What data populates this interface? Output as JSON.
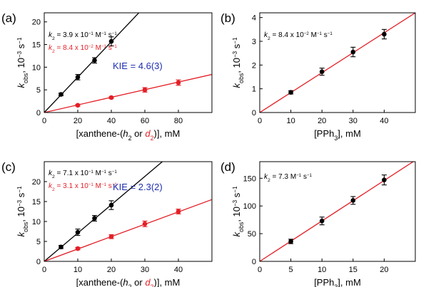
{
  "colors": {
    "black": "#000000",
    "red": "#e41f26",
    "blue": "#1f2fb0"
  },
  "chart_data": [
    {
      "type": "scatter",
      "panel": "(a)",
      "xlim": [
        0,
        100
      ],
      "ylim": [
        0,
        22
      ],
      "xticks": [
        0,
        20,
        40,
        60,
        80
      ],
      "yticks": [
        0,
        5,
        10,
        15,
        20
      ],
      "xlabel_parts": [
        "[xanthene-(",
        "h",
        "2",
        " or ",
        "d",
        "2",
        ")], mM"
      ],
      "ylabel_parts": [
        "k",
        "obs",
        ", 10",
        "−3",
        " s",
        "−1"
      ],
      "grid": false,
      "series": [
        {
          "color": "#000000",
          "x": [
            10,
            20,
            30,
            40
          ],
          "y": [
            4.0,
            7.8,
            11.5,
            15.7
          ],
          "err": [
            0.3,
            0.6,
            0.6,
            1.0
          ],
          "slope": 0.39
        },
        {
          "color": "#e41f26",
          "x": [
            20,
            40,
            60,
            80
          ],
          "y": [
            1.6,
            3.3,
            5.0,
            6.6
          ],
          "err": [
            0.2,
            0.2,
            0.5,
            0.6
          ],
          "slope": 0.084
        }
      ],
      "annotations": [
        {
          "color": "#000000",
          "parts": [
            "k",
            "2",
            " = 3.9 x 10",
            "−1",
            " M",
            "−1",
            " s",
            "−1"
          ]
        },
        {
          "color": "#e41f26",
          "parts": [
            "k",
            "2",
            " = 8.4 x 10",
            "−2",
            " M",
            "−1",
            " s",
            "−1"
          ]
        },
        {
          "color": "#1f2fb0",
          "text": "KIE = 4.6(3)"
        }
      ]
    },
    {
      "type": "scatter",
      "panel": "(b)",
      "xlim": [
        0,
        50
      ],
      "ylim": [
        0,
        4.2
      ],
      "xticks": [
        0,
        10,
        20,
        30,
        40
      ],
      "yticks": [
        0,
        1,
        2,
        3,
        4
      ],
      "xlabel_parts": [
        "[PPh",
        "3",
        "], mM"
      ],
      "ylabel_parts": [
        "k",
        "obs",
        ", 10",
        "−3",
        " s",
        "−1"
      ],
      "grid": false,
      "series": [
        {
          "color": "#000000",
          "line_color": "#e41f26",
          "x": [
            10,
            20,
            30,
            40
          ],
          "y": [
            0.85,
            1.72,
            2.55,
            3.3
          ],
          "err": [
            0.07,
            0.15,
            0.2,
            0.2
          ],
          "slope": 0.084
        }
      ],
      "annotations": [
        {
          "color": "#000000",
          "parts": [
            "k",
            "2",
            " = 8.4 x 10",
            "−2",
            " M",
            "−1",
            " s",
            "−1"
          ]
        }
      ]
    },
    {
      "type": "scatter",
      "panel": "(c)",
      "xlim": [
        0,
        50
      ],
      "ylim": [
        0,
        25
      ],
      "xticks": [
        0,
        10,
        20,
        30,
        40
      ],
      "yticks": [
        0,
        5,
        10,
        15,
        20
      ],
      "xlabel_parts": [
        "[xanthene-(",
        "h",
        "2",
        " or ",
        "d",
        "2",
        ")], mM"
      ],
      "ylabel_parts": [
        "k",
        "obs",
        ", 10",
        "−3",
        " s",
        "−1"
      ],
      "grid": false,
      "series": [
        {
          "color": "#000000",
          "x": [
            5,
            10,
            15,
            20
          ],
          "y": [
            3.6,
            7.3,
            10.8,
            14.1
          ],
          "err": [
            0.4,
            0.8,
            0.7,
            1.1
          ],
          "slope": 0.71
        },
        {
          "color": "#e41f26",
          "x": [
            10,
            20,
            30,
            40
          ],
          "y": [
            3.2,
            6.2,
            9.4,
            12.5
          ],
          "err": [
            0.3,
            0.5,
            0.7,
            0.6
          ],
          "slope": 0.31
        }
      ],
      "annotations": [
        {
          "color": "#000000",
          "parts": [
            "k",
            "2",
            " = 7.1 x 10",
            "−1",
            " M",
            "−1",
            " s",
            "−1"
          ]
        },
        {
          "color": "#e41f26",
          "parts": [
            "k",
            "2",
            " = 3.1 x 10",
            "−1",
            " M",
            "−1",
            " s",
            "−1"
          ]
        },
        {
          "color": "#1f2fb0",
          "text": "KIE = 2.3(2)"
        }
      ]
    },
    {
      "type": "scatter",
      "panel": "(d)",
      "xlim": [
        0,
        25
      ],
      "ylim": [
        0,
        180
      ],
      "xticks": [
        0,
        5,
        10,
        15,
        20
      ],
      "yticks": [
        0,
        50,
        100,
        150
      ],
      "xlabel_parts": [
        "[PPh",
        "3",
        "], mM"
      ],
      "ylabel_parts": [
        "k",
        "obs",
        ", 10",
        "−3",
        " s",
        "−1"
      ],
      "grid": false,
      "series": [
        {
          "color": "#000000",
          "line_color": "#e41f26",
          "x": [
            5,
            10,
            15,
            20
          ],
          "y": [
            36,
            73,
            110,
            147
          ],
          "err": [
            4,
            7,
            7,
            9
          ],
          "slope": 7.3
        }
      ],
      "annotations": [
        {
          "color": "#000000",
          "parts": [
            "k",
            "2",
            " = 7.3 M",
            "−1",
            " s",
            "−1"
          ]
        }
      ]
    }
  ]
}
